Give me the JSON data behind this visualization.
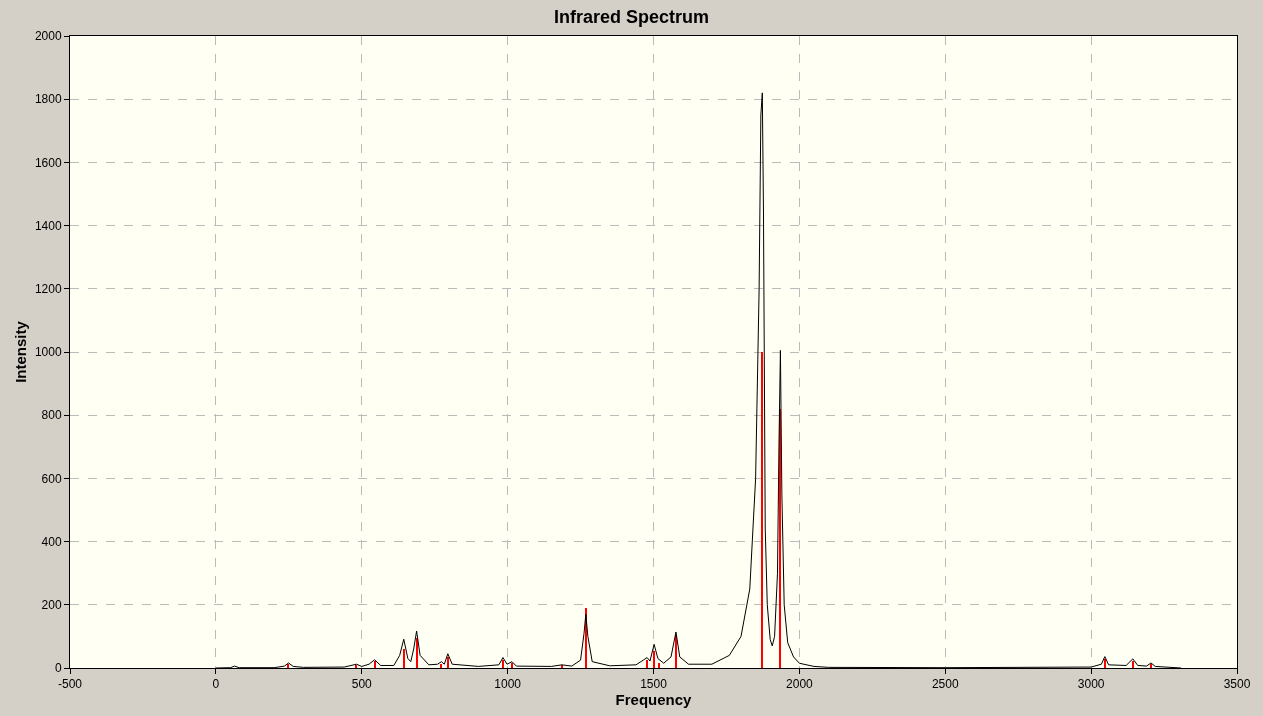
{
  "chart_data": {
    "type": "line",
    "title": "Infrared Spectrum",
    "xlabel": "Frequency",
    "ylabel": "Intensity",
    "xlim": [
      -500,
      3500
    ],
    "xticks": [
      -500,
      0,
      500,
      1000,
      1500,
      2000,
      2500,
      3000,
      3500
    ],
    "ylim": [
      0,
      2000
    ],
    "yticks": [
      0,
      200,
      400,
      600,
      800,
      1000,
      1200,
      1400,
      1600,
      1800,
      2000
    ],
    "grid": true,
    "legend": false,
    "marker": "none",
    "line_style": "solid",
    "series": [
      {
        "color": "#000000",
        "x": [
          0,
          50,
          64,
          80,
          200,
          235,
          249,
          265,
          300,
          440,
          482,
          500,
          525,
          544,
          565,
          610,
          630,
          644,
          658,
          668,
          678,
          688,
          700,
          730,
          760,
          773,
          783,
          795,
          810,
          900,
          970,
          984,
          998,
          1015,
          1030,
          1150,
          1186,
          1220,
          1250,
          1262,
          1268,
          1275,
          1290,
          1350,
          1440,
          1465,
          1478,
          1488,
          1502,
          1515,
          1535,
          1560,
          1577,
          1590,
          1620,
          1700,
          1760,
          1800,
          1830,
          1850,
          1862,
          1868,
          1873,
          1877,
          1883,
          1890,
          1900,
          1907,
          1915,
          1925,
          1930,
          1935,
          1940,
          1948,
          1960,
          1980,
          2000,
          2050,
          2100,
          2500,
          3000,
          3035,
          3047,
          3060,
          3120,
          3143,
          3160,
          3190,
          3205,
          3220,
          3308
        ],
        "values": [
          0,
          1,
          6,
          1,
          1,
          6,
          16,
          5,
          2,
          3,
          12,
          5,
          12,
          26,
          8,
          8,
          40,
          91,
          30,
          20,
          60,
          117,
          40,
          10,
          12,
          20,
          12,
          45,
          12,
          5,
          10,
          33,
          12,
          20,
          6,
          5,
          10,
          6,
          25,
          110,
          170,
          100,
          20,
          7,
          10,
          25,
          33,
          22,
          75,
          30,
          15,
          35,
          114,
          35,
          12,
          12,
          40,
          100,
          250,
          600,
          1200,
          1750,
          1820,
          1440,
          440,
          200,
          90,
          70,
          100,
          300,
          700,
          1005,
          550,
          200,
          80,
          35,
          15,
          5,
          2,
          1,
          3,
          12,
          36,
          10,
          8,
          29,
          8,
          6,
          16,
          5,
          0
        ]
      },
      {
        "type": "bar",
        "color": "#ff0000",
        "x": [
          249,
          482,
          544,
          644,
          688,
          773,
          795,
          984,
          1015,
          1186,
          1268,
          1478,
          1502,
          1520,
          1577,
          1873,
          1935,
          3047,
          3143,
          3205
        ],
        "values": [
          12,
          10,
          22,
          60,
          95,
          12,
          35,
          25,
          15,
          8,
          190,
          25,
          55,
          15,
          105,
          1000,
          820,
          30,
          22,
          12
        ]
      }
    ]
  }
}
